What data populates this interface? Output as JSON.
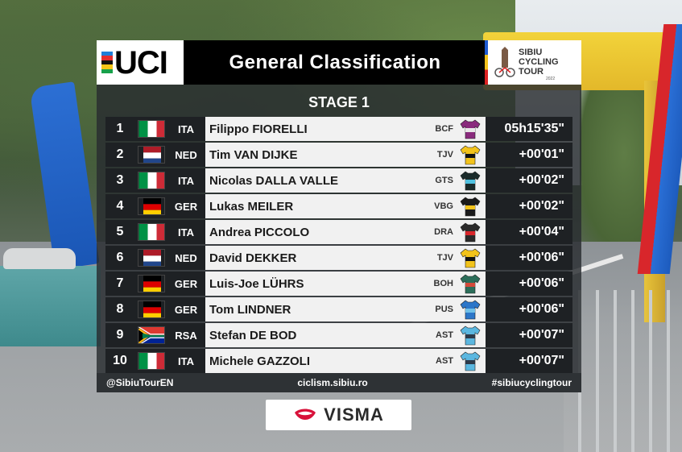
{
  "header": {
    "uci_logo": "UCI",
    "title": "General  Classification",
    "tour_logo_lines": [
      "SIBIU",
      "CYCLING",
      "TOUR"
    ],
    "tour_logo_year": "2022"
  },
  "stage": "STAGE 1",
  "colors": {
    "uci_stripes": [
      "#1f7fd8",
      "#e62d2d",
      "#111111",
      "#f5c518",
      "#18a14a"
    ],
    "panel_bg": "#282c30",
    "row_dark": "#1e2124",
    "row_light": "#f1f1f1"
  },
  "standings": [
    {
      "pos": "1",
      "flag": "it",
      "nat": "ITA",
      "name": "Filippo FIORELLI",
      "team": "BCF",
      "jersey": "bcf",
      "time": "05h15'35\""
    },
    {
      "pos": "2",
      "flag": "nl",
      "nat": "NED",
      "name": "Tim VAN DIJKE",
      "team": "TJV",
      "jersey": "tjv",
      "time": "+00'01\""
    },
    {
      "pos": "3",
      "flag": "it",
      "nat": "ITA",
      "name": "Nicolas DALLA VALLE",
      "team": "GTS",
      "jersey": "gts",
      "time": "+00'02\""
    },
    {
      "pos": "4",
      "flag": "de",
      "nat": "GER",
      "name": "Lukas MEILER",
      "team": "VBG",
      "jersey": "vbg",
      "time": "+00'02\""
    },
    {
      "pos": "5",
      "flag": "it",
      "nat": "ITA",
      "name": "Andrea PICCOLO",
      "team": "DRA",
      "jersey": "dra",
      "time": "+00'04\""
    },
    {
      "pos": "6",
      "flag": "nl",
      "nat": "NED",
      "name": "David DEKKER",
      "team": "TJV",
      "jersey": "tjv",
      "time": "+00'06\""
    },
    {
      "pos": "7",
      "flag": "de",
      "nat": "GER",
      "name": "Luis-Joe LÜHRS",
      "team": "BOH",
      "jersey": "boh",
      "time": "+00'06\""
    },
    {
      "pos": "8",
      "flag": "de",
      "nat": "GER",
      "name": "Tom LINDNER",
      "team": "PUS",
      "jersey": "pus",
      "time": "+00'06\""
    },
    {
      "pos": "9",
      "flag": "za",
      "nat": "RSA",
      "name": "Stefan DE BOD",
      "team": "AST",
      "jersey": "ast",
      "time": "+00'07\""
    },
    {
      "pos": "10",
      "flag": "it",
      "nat": "ITA",
      "name": "Michele GAZZOLI",
      "team": "AST",
      "jersey": "ast",
      "time": "+00'07\""
    }
  ],
  "footer": {
    "left": "@SibiuTourEN",
    "center": "ciclism.sibiu.ro",
    "right": "#sibiucyclingtour"
  },
  "sponsor": "VISMA"
}
